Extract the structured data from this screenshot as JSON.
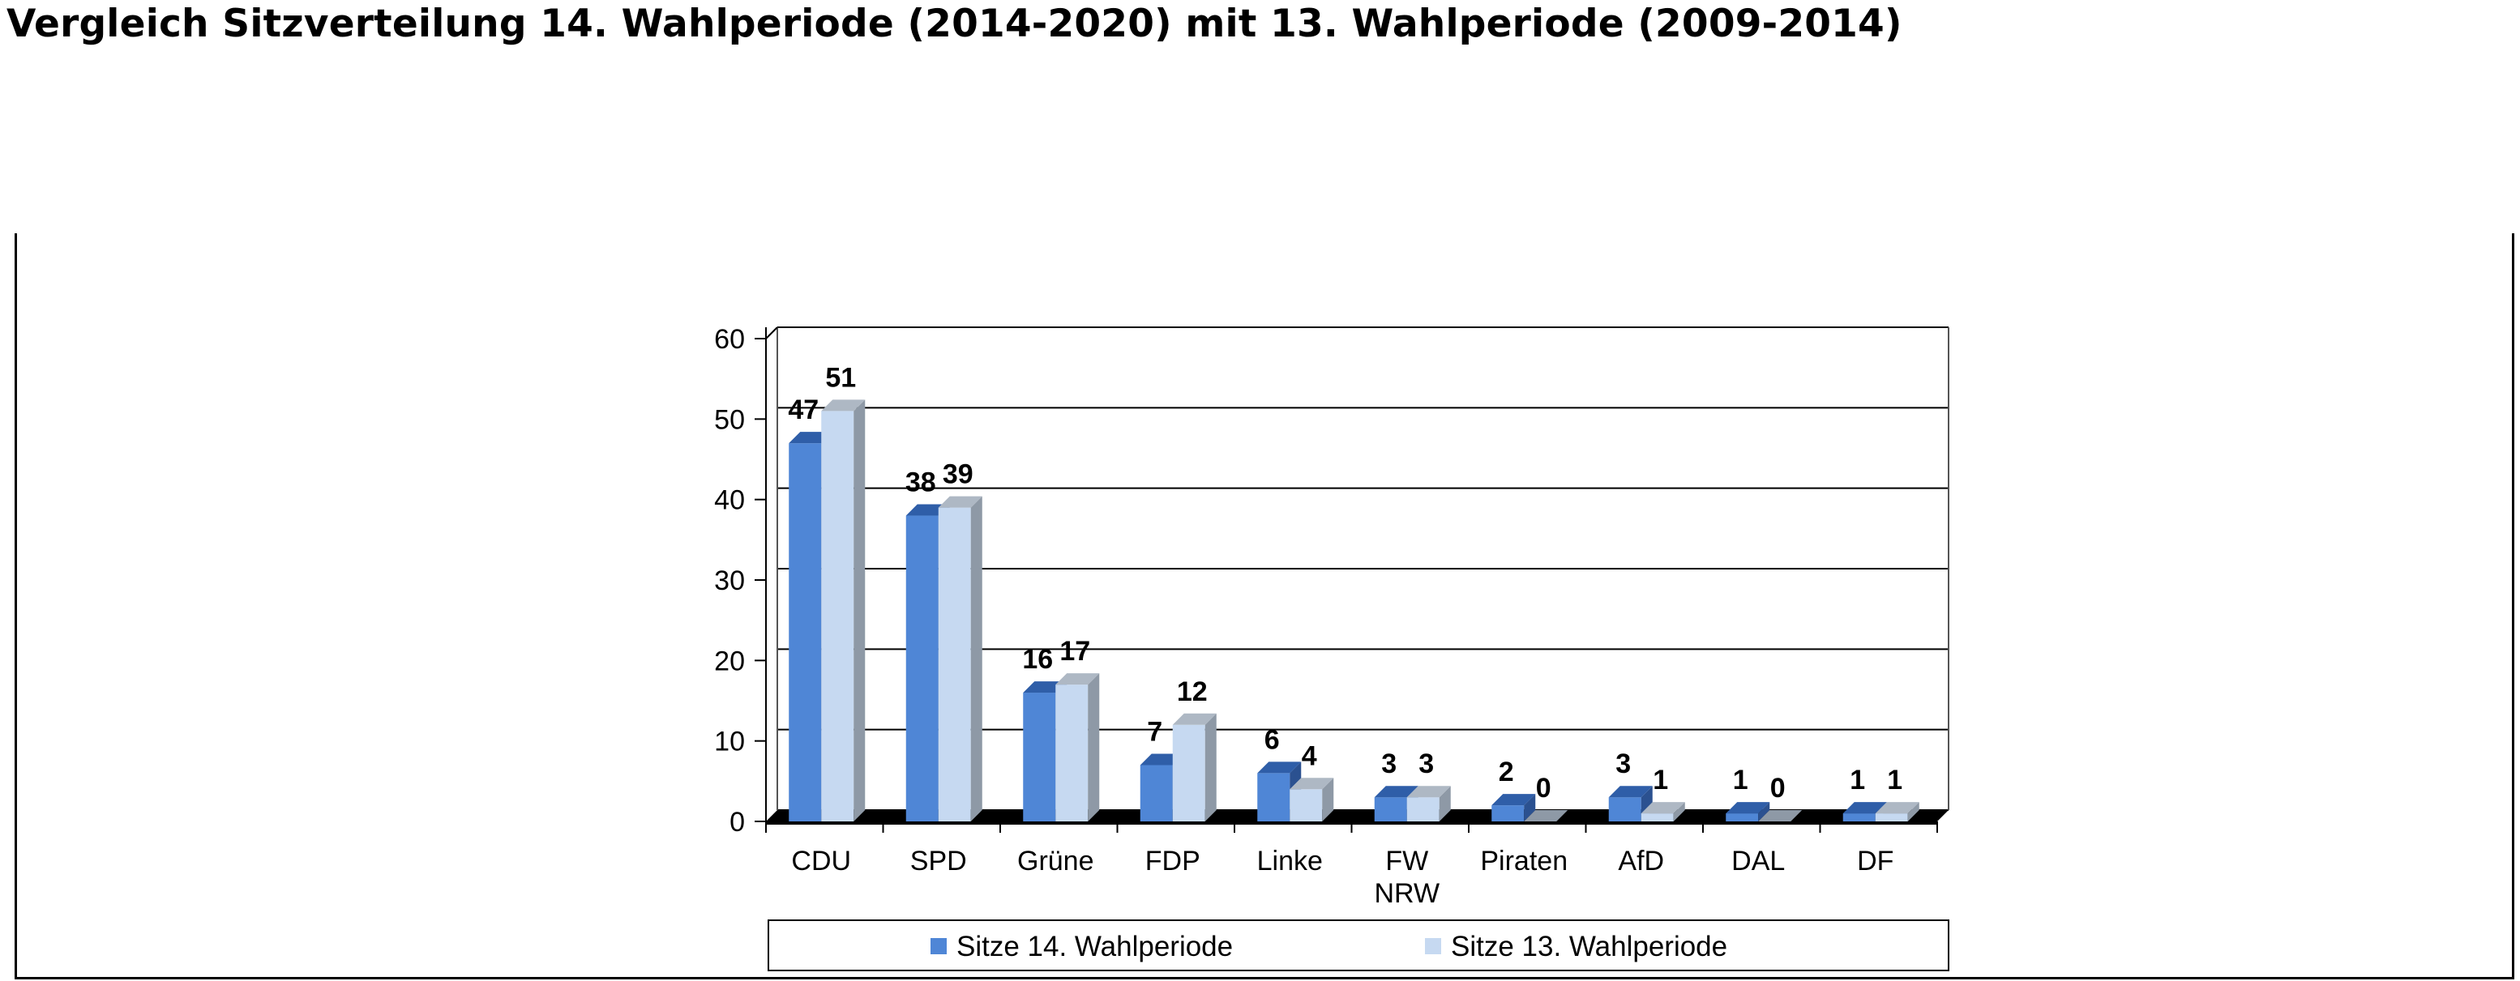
{
  "title": "Vergleich Sitzverteilung 14. Wahlperiode (2014-2020) mit 13. Wahlperiode (2009-2014)",
  "colors": {
    "series1_front": "#4f86d6",
    "series1_top": "#2f5ea8",
    "series1_side": "#2b5190",
    "series2_front": "#c6d9f1",
    "series2_top": "#aeb8c4",
    "series2_side": "#8e99a6",
    "floor": "#000000",
    "grid": "#000000"
  },
  "chart_data": {
    "type": "bar",
    "title": "",
    "xlabel": "",
    "ylabel": "",
    "ylim": [
      0,
      60
    ],
    "yticks": [
      0,
      10,
      20,
      30,
      40,
      50,
      60
    ],
    "grid": true,
    "legend_position": "bottom",
    "categories": [
      [
        "CDU"
      ],
      [
        "SPD"
      ],
      [
        "Grüne"
      ],
      [
        "FDP"
      ],
      [
        "Linke"
      ],
      [
        "FW",
        "NRW"
      ],
      [
        "Piraten"
      ],
      [
        "AfD"
      ],
      [
        "DAL"
      ],
      [
        "DF"
      ]
    ],
    "series": [
      {
        "name": "Sitze 14. Wahlperiode",
        "values": [
          47,
          38,
          16,
          7,
          6,
          3,
          2,
          3,
          1,
          1
        ]
      },
      {
        "name": "Sitze 13. Wahlperiode",
        "values": [
          51,
          39,
          17,
          12,
          4,
          3,
          0,
          1,
          0,
          1
        ]
      }
    ]
  }
}
